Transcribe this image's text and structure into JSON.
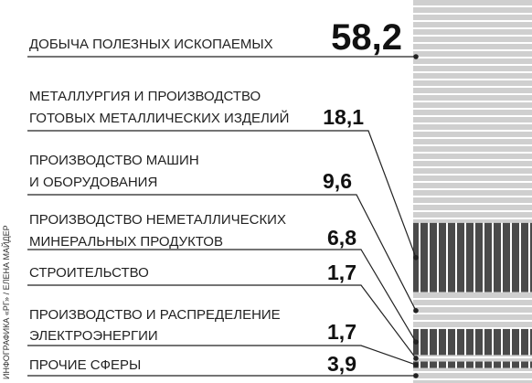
{
  "chart_data": {
    "type": "bar",
    "categories": [
      [
        "ДОБЫЧА ПОЛЕЗНЫХ ИСКОПАЕМЫХ"
      ],
      [
        "МЕТАЛЛУРГИЯ И ПРОИЗВОДСТВО",
        "ГОТОВЫХ МЕТАЛЛИЧЕСКИХ ИЗДЕЛИЙ"
      ],
      [
        "ПРОИЗВОДСТВО МАШИН",
        "И ОБОРУДОВАНИЯ"
      ],
      [
        "ПРОИЗВОДСТВО НЕМЕТАЛЛИЧЕСКИХ",
        "МИНЕРАЛЬНЫХ ПРОДУКТОВ"
      ],
      [
        "СТРОИТЕЛЬСТВО"
      ],
      [
        "ПРОИЗВОДСТВО И РАСПРЕДЕЛЕНИЕ",
        "ЭЛЕКТРОЭНЕРГИИ"
      ],
      [
        "ПРОЧИЕ СФЕРЫ"
      ]
    ],
    "values": [
      58.2,
      18.1,
      9.6,
      6.8,
      1.7,
      1.7,
      3.9
    ],
    "value_labels": [
      "58,2",
      "18,1",
      "9,6",
      "6,8",
      "1,7",
      "1,7",
      "3,9"
    ],
    "colors": [
      "light",
      "dark",
      "light",
      "dark",
      "light",
      "dark",
      "light"
    ],
    "credit": "ИНФОГРАФИКА «РГ» / ЕЛЕНА МАЙДЕР"
  }
}
